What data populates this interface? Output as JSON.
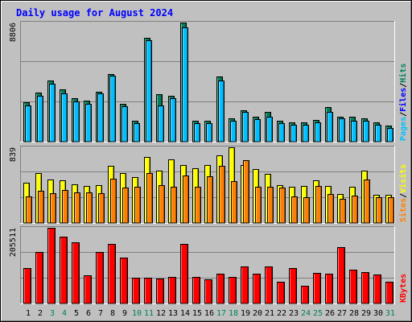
{
  "chart_data": [
    {
      "type": "bar",
      "title": "Daily usage for August 2024",
      "panel": "hits-files-pages",
      "ylabel_parts": [
        "Pages",
        "Files",
        "Hits"
      ],
      "ymax_label": "8806",
      "ylim": [
        0,
        8806
      ],
      "categories": [
        "1",
        "2",
        "3",
        "4",
        "5",
        "6",
        "7",
        "8",
        "9",
        "10",
        "11",
        "12",
        "13",
        "14",
        "15",
        "16",
        "17",
        "18",
        "19",
        "20",
        "21",
        "22",
        "23",
        "24",
        "25",
        "26",
        "27",
        "28",
        "29",
        "30",
        "31"
      ],
      "weekend_days": [
        "3",
        "4",
        "10",
        "11",
        "17",
        "18",
        "24",
        "25",
        "31"
      ],
      "series": [
        {
          "name": "Hits",
          "values": [
            2940,
            3656,
            4536,
            3896,
            3220,
            3036,
            3708,
            5024,
            2770,
            1539,
            7695,
            3536,
            3362,
            8806,
            1552,
            1552,
            4799,
            1718,
            2337,
            1866,
            2202,
            1534,
            1422,
            1406,
            1624,
            2551,
            1866,
            1857,
            1718,
            1422,
            1181
          ]
        },
        {
          "name": "Files",
          "values": [
            2688,
            3392,
            4281,
            3592,
            2992,
            2808,
            3552,
            4898,
            2616,
            1364,
            7468,
            2704,
            3208,
            8478,
            1362,
            1362,
            4525,
            1542,
            2181,
            1656,
            1866,
            1382,
            1266,
            1232,
            1434,
            2230,
            1718,
            1534,
            1534,
            1232,
            1009
          ]
        },
        {
          "name": "Pages",
          "values": [
            0,
            0,
            0,
            0,
            0,
            0,
            0,
            0,
            0,
            0,
            0,
            0,
            0,
            0,
            0,
            0,
            0,
            0,
            0,
            0,
            0,
            0,
            0,
            0,
            0,
            0,
            0,
            0,
            0,
            0,
            0
          ]
        }
      ],
      "colors": {
        "Hits": "#00805c",
        "Files": "#00c0ff",
        "Pages": "#0000ff"
      }
    },
    {
      "type": "bar",
      "panel": "visits-sites",
      "ylabel_parts": [
        "Sites",
        "Visits"
      ],
      "ymax_label": "839",
      "ylim": [
        0,
        839
      ],
      "series": [
        {
          "name": "Visits",
          "values": [
            448,
            557,
            484,
            474,
            431,
            414,
            422,
            637,
            557,
            512,
            734,
            581,
            702,
            646,
            611,
            640,
            750,
            839,
            642,
            597,
            546,
            422,
            405,
            414,
            474,
            414,
            325,
            405,
            580,
            312,
            313
          ]
        },
        {
          "name": "Sites",
          "values": [
            299,
            355,
            330,
            363,
            339,
            339,
            330,
            492,
            396,
            398,
            555,
            418,
            404,
            527,
            404,
            521,
            632,
            467,
            700,
            404,
            398,
            397,
            299,
            286,
            414,
            319,
            264,
            304,
            478,
            285,
            288
          ]
        }
      ],
      "colors": {
        "Visits": "#ffff00",
        "Sites": "#ff8000"
      }
    },
    {
      "type": "bar",
      "panel": "kbytes",
      "ylabel_parts": [
        "KBytes"
      ],
      "ymax_label": "205511",
      "ylim": [
        0,
        205511
      ],
      "series": [
        {
          "name": "KBytes",
          "values": [
            96400,
            138900,
            205511,
            181200,
            166500,
            75900,
            139800,
            162800,
            125300,
            70100,
            69200,
            68300,
            73100,
            161900,
            73100,
            66100,
            80400,
            72200,
            100900,
            80300,
            99900,
            59400,
            97100,
            48700,
            83300,
            81900,
            153400,
            91600,
            85000,
            77700,
            59700
          ]
        }
      ],
      "colors": {
        "KBytes": "#ff0000"
      }
    }
  ]
}
